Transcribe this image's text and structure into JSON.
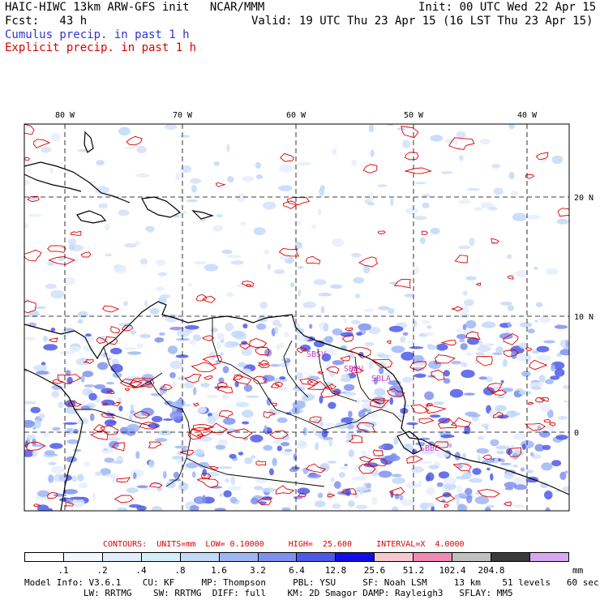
{
  "header": {
    "line1_left": "HAIC-HIWC 13km ARW-GFS init   NCAR/MMM",
    "line1_right": "Init: 00 UTC Wed 22 Apr 15",
    "line2_left": "Fcst:   43 h",
    "line2_right": "Valid: 19 UTC Thu 23 Apr 15 (16 LST Thu 23 Apr 15)",
    "line3": "Cumulus precip. in past 1 h",
    "line4": "Explicit precip. in past 1 h"
  },
  "map": {
    "lon_labels": [
      "80 W",
      "70 W",
      "60 W",
      "50 W",
      "40 W"
    ],
    "lat_labels": [
      "20 N",
      "10 N",
      "0"
    ],
    "station_labels": [
      "SBSV",
      "SBBV",
      "SBLA",
      "SBBE"
    ],
    "colors": {
      "cumulus": "#4a55dd",
      "explicit": "#dd0000",
      "station": "#cc33cc"
    }
  },
  "contours_text": "CONTOURS:  UNITS=mm  LOW= 0.10000     HIGH=  25.600     INTERVAL=X  4.0000",
  "legend": {
    "colors": [
      "#ffffff",
      "#f2f6ff",
      "#e2ecfc",
      "#d3f0f6",
      "#c2d9f8",
      "#9fb6f6",
      "#8090ee",
      "#4d5ae8",
      "#1010e6",
      "#f5c9cf",
      "#f08ab4",
      "#c0c0c0",
      "#3a3a3a",
      "#d8a8f2"
    ],
    "labels": [
      ".1",
      ".2",
      ".4",
      ".8",
      "1.6",
      "3.2",
      "6.4",
      "12.8",
      "25.6",
      "51.2",
      "102.4",
      "204.8"
    ],
    "unit": "mm"
  },
  "footer": {
    "line1": "Model Info: V3.6.1    CU: KF     MP: Thompson     PBL: YSU     SF: Noah LSM     13 km    51 levels   60 sec",
    "line2": "           LW: RRTMG    SW: RRTMG  DIFF: full    KM: 2D Smagor DAMP: Rayleigh3   SFLAY: MM5"
  }
}
